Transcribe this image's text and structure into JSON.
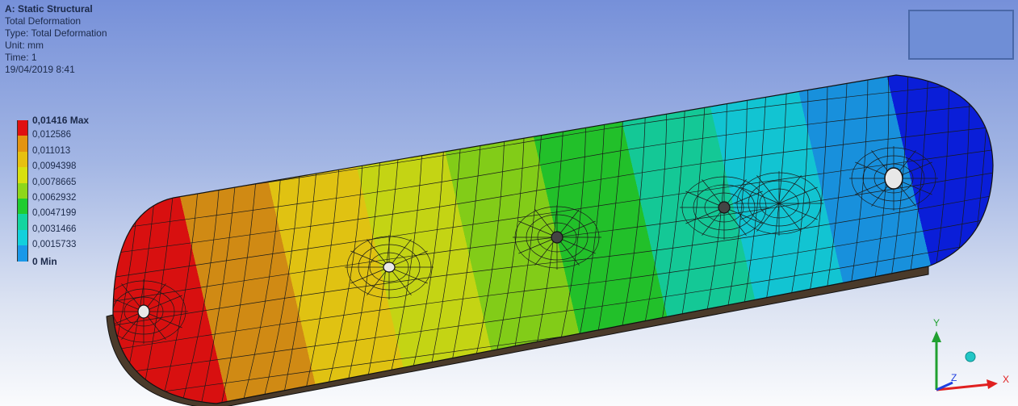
{
  "info": {
    "title": "A: Static Structural",
    "result_name": "Total Deformation",
    "type_line": "Type: Total Deformation",
    "unit_line": "Unit: mm",
    "time_line": "Time: 1",
    "timestamp": "19/04/2019 8:41"
  },
  "legend": {
    "entries": [
      {
        "label": "0,01416 Max",
        "color": "#e01010"
      },
      {
        "label": "0,012586",
        "color": "#e49410"
      },
      {
        "label": "0,011013",
        "color": "#e6c010"
      },
      {
        "label": "0,0094398",
        "color": "#d8e010"
      },
      {
        "label": "0,0078665",
        "color": "#8ed61a"
      },
      {
        "label": "0,0062932",
        "color": "#20cc30"
      },
      {
        "label": "0,0047199",
        "color": "#12d4a0"
      },
      {
        "label": "0,0031466",
        "color": "#12d0dc"
      },
      {
        "label": "0,0015733",
        "color": "#1a98e8"
      },
      {
        "label": "0 Min",
        "color": "#0a1ee0"
      }
    ]
  },
  "triad": {
    "x_label": "X",
    "y_label": "Y",
    "z_label": "Z",
    "x_color": "#e02020",
    "y_color": "#20a030",
    "z_color": "#2040e0"
  }
}
